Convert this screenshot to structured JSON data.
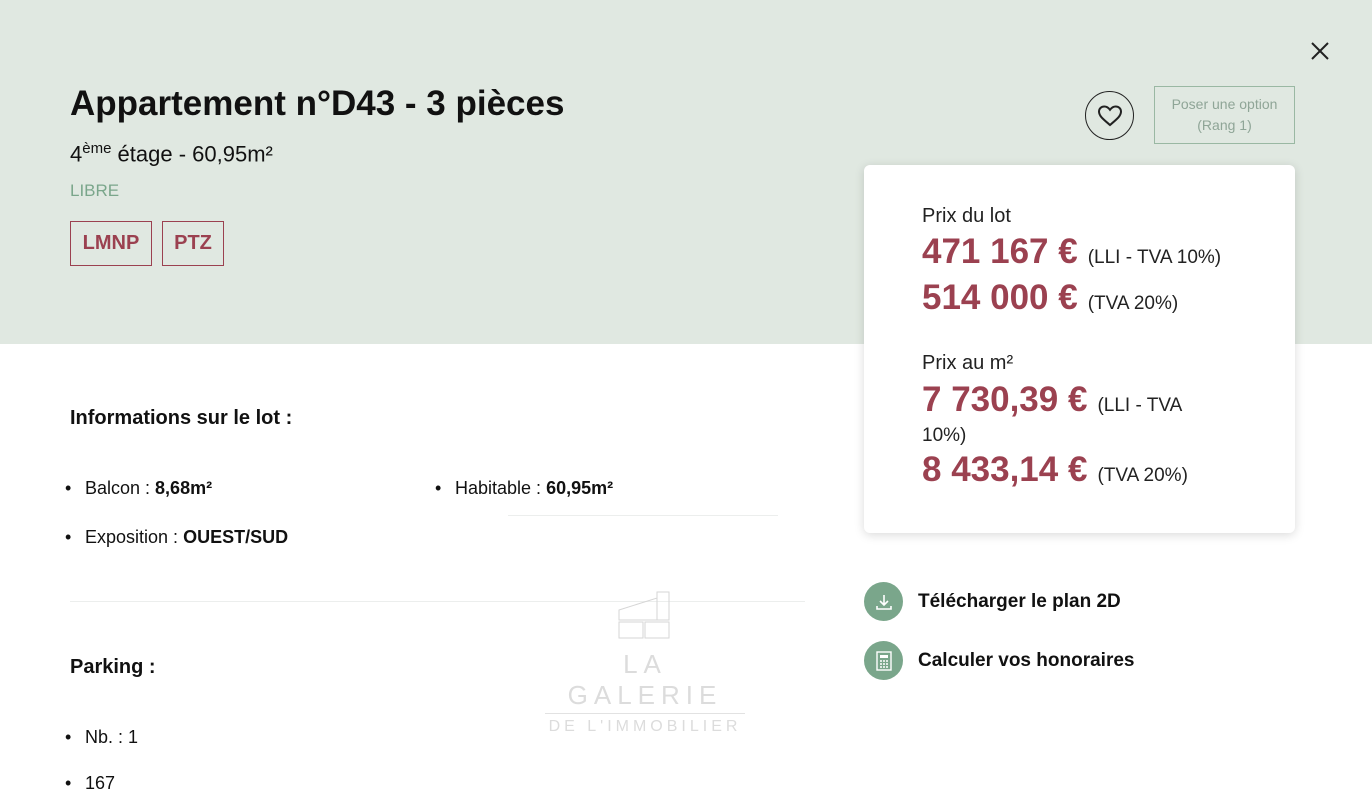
{
  "header": {
    "title": "Appartement n°D43 - 3 pièces",
    "floor_num": "4",
    "floor_sup": "ème",
    "floor_rest": " étage - 60,95m²",
    "status": "LIBRE",
    "tags": [
      "LMNP",
      "PTZ"
    ],
    "option_line1": "Poser une option",
    "option_line2": "(Rang 1)"
  },
  "prices": {
    "lot_label": "Prix du lot",
    "lot": [
      {
        "value": "471 167 €",
        "note": "(LLI - TVA 10%)"
      },
      {
        "value": "514 000 €",
        "note": "(TVA 20%)"
      }
    ],
    "m2_label": "Prix au m²",
    "m2": [
      {
        "value": "7 730,39 €",
        "note": "(LLI - TVA",
        "note2": "10%)"
      },
      {
        "value": "8 433,14 €",
        "note": "(TVA 20%)"
      }
    ]
  },
  "info": {
    "title": "Informations sur le lot :",
    "items": [
      {
        "label": "Balcon : ",
        "value": "8,68m²"
      },
      {
        "label": "Habitable : ",
        "value": "60,95m²"
      },
      {
        "label": "Exposition : ",
        "value": "OUEST/SUD"
      }
    ]
  },
  "parking": {
    "title": "Parking :",
    "items": [
      "Nb. : 1",
      "167"
    ]
  },
  "actions": [
    "Télécharger le plan 2D",
    "Calculer vos honoraires"
  ],
  "logo": {
    "line1": "LA GALERIE",
    "line2": "DE L'IMMOBILIER"
  },
  "colors": {
    "accent": "#9b4150",
    "green": "#7aa68b",
    "hero": "#e0e8e1"
  }
}
